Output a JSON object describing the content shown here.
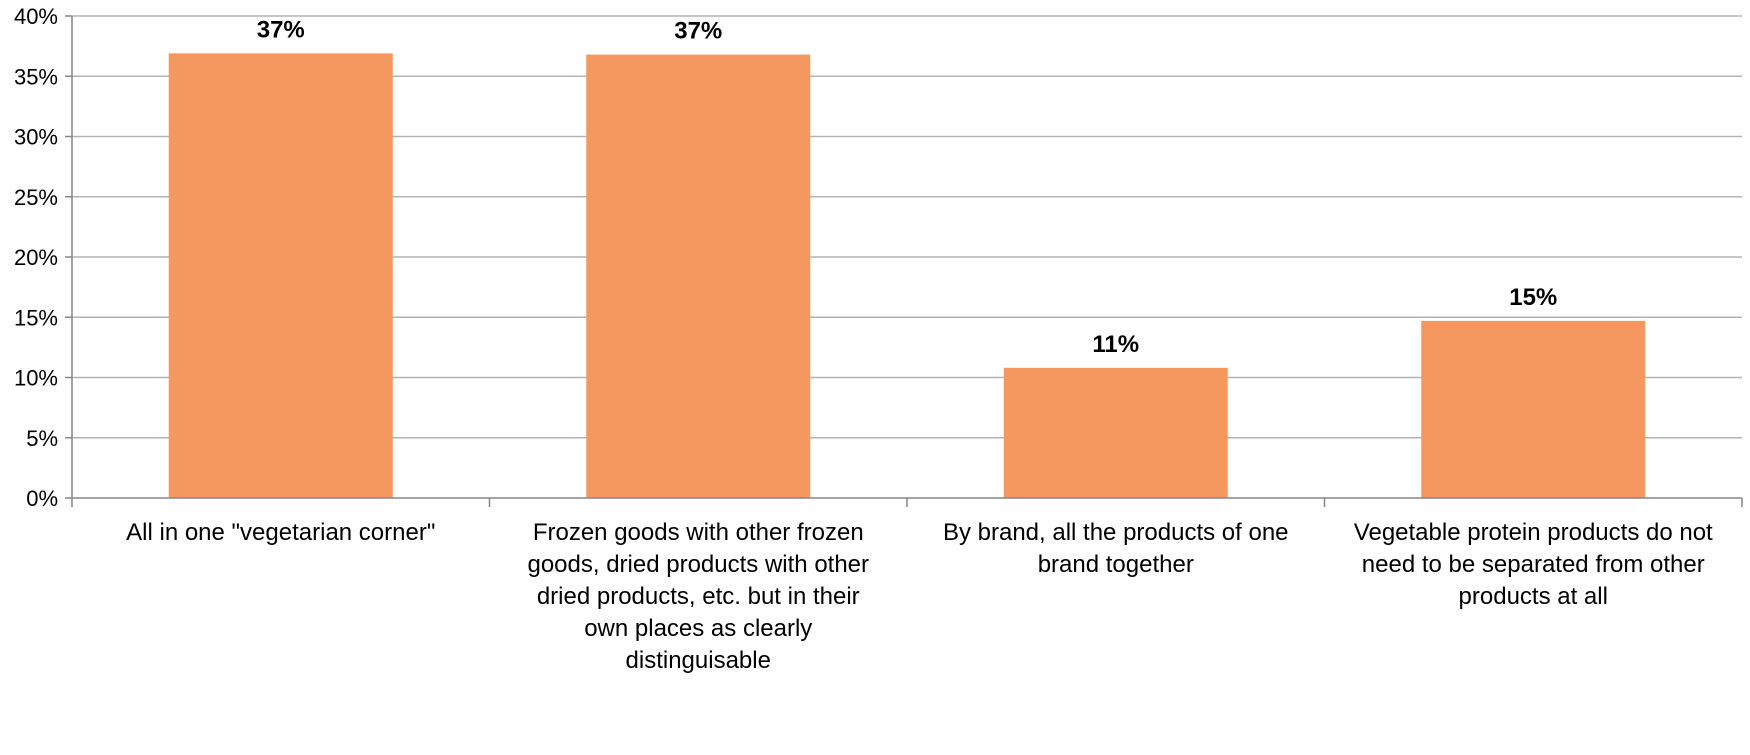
{
  "chart_data": {
    "type": "bar",
    "title": "",
    "xlabel": "",
    "ylabel": "",
    "ylim": [
      0,
      40
    ],
    "y_ticks": [
      "0%",
      "5%",
      "10%",
      "15%",
      "20%",
      "25%",
      "30%",
      "35%",
      "40%"
    ],
    "y_tick_values": [
      0,
      5,
      10,
      15,
      20,
      25,
      30,
      35,
      40
    ],
    "grid": "horizontal",
    "legend": "none",
    "bar_color": "#f4985f",
    "grid_color": "#b3b3b3",
    "categories": [
      [
        "All in one \"vegetarian corner\""
      ],
      [
        "Frozen goods with other frozen",
        "goods, dried products with other",
        "dried products, etc. but in their",
        "own places as clearly",
        "distinguisable"
      ],
      [
        "By brand, all the products of one",
        "brand together"
      ],
      [
        "Vegetable protein products do not",
        "need to be separated from other",
        "products at all"
      ]
    ],
    "values": [
      36.9,
      36.8,
      10.8,
      14.7
    ],
    "data_labels": [
      "37%",
      "37%",
      "11%",
      "15%"
    ]
  }
}
